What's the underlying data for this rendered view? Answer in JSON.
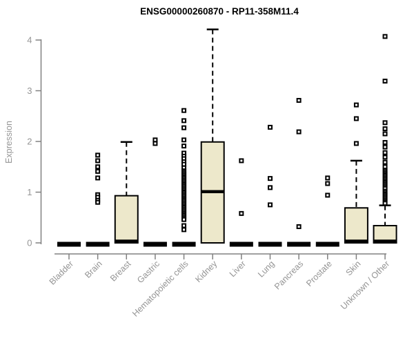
{
  "chart_data": {
    "type": "boxplot",
    "title": "ENSG00000260870 - RP11-358M11.4",
    "ylabel": "Expression",
    "xlabel": "",
    "ylim": [
      0,
      4.3
    ],
    "yticks": [
      0,
      1,
      2,
      3,
      4
    ],
    "grid": false,
    "legend": "none",
    "colors": {
      "box_fill": "#EDE8CB",
      "box_border": "#000000",
      "median": "#000000",
      "whisker": "#000000",
      "outlier": "#000000",
      "axis_line": "#808080",
      "tick_label": "#949494",
      "axis_label": "#949494",
      "title": "#000000",
      "background": "#FFFFFF"
    },
    "categories": [
      "Bladder",
      "Brain",
      "Breast",
      "Gastric",
      "Hematopoietic cells",
      "Kidney",
      "Liver",
      "Lung",
      "Pancreas",
      "Prostate",
      "Skin",
      "Unknown / Other"
    ],
    "boxes": [
      {
        "category": "Bladder",
        "min": 0,
        "q1": 0,
        "median": 0,
        "q3": 0,
        "max": 0,
        "outliers": []
      },
      {
        "category": "Brain",
        "min": 0,
        "q1": 0,
        "median": 0,
        "q3": 0,
        "max": 0,
        "outliers": [
          1.73,
          1.62,
          1.5,
          1.41,
          1.28,
          0.95,
          0.9,
          0.84,
          0.8
        ]
      },
      {
        "category": "Breast",
        "min": 0,
        "q1": 0,
        "median": 0,
        "q3": 0.93,
        "max": 1.99,
        "outliers": []
      },
      {
        "category": "Gastric",
        "min": 0,
        "q1": 0,
        "median": 0,
        "q3": 0,
        "max": 0,
        "outliers": [
          2.03,
          1.96
        ]
      },
      {
        "category": "Hematopoietic cells",
        "min": 0,
        "q1": 0,
        "median": 0,
        "q3": 0,
        "max": 0,
        "outliers": [
          2.61,
          2.41,
          2.27,
          2.03,
          1.91,
          1.77,
          1.71,
          1.66,
          1.6,
          1.55,
          1.48,
          1.42,
          1.39,
          1.36,
          1.33,
          1.3,
          1.27,
          1.24,
          1.21,
          1.18,
          1.15,
          1.12,
          1.09,
          1.06,
          1.03,
          1.0,
          0.97,
          0.94,
          0.91,
          0.88,
          0.85,
          0.82,
          0.79,
          0.76,
          0.73,
          0.7,
          0.67,
          0.64,
          0.61,
          0.58,
          0.55,
          0.52,
          0.49,
          0.46,
          0.34,
          0.26
        ]
      },
      {
        "category": "Kidney",
        "min": 0,
        "q1": 0,
        "median": 1.01,
        "q3": 1.99,
        "max": 4.21,
        "outliers": []
      },
      {
        "category": "Liver",
        "min": 0,
        "q1": 0,
        "median": 0,
        "q3": 0,
        "max": 0,
        "outliers": [
          1.62,
          0.58
        ]
      },
      {
        "category": "Lung",
        "min": 0,
        "q1": 0,
        "median": 0,
        "q3": 0,
        "max": 0,
        "outliers": [
          2.28,
          1.27,
          1.09,
          0.75
        ]
      },
      {
        "category": "Pancreas",
        "min": 0,
        "q1": 0,
        "median": 0,
        "q3": 0,
        "max": 0,
        "outliers": [
          2.81,
          2.19,
          0.32
        ]
      },
      {
        "category": "Prostate",
        "min": 0,
        "q1": 0,
        "median": 0,
        "q3": 0,
        "max": 0,
        "outliers": [
          1.28,
          1.17,
          0.94
        ]
      },
      {
        "category": "Skin",
        "min": 0,
        "q1": 0,
        "median": 0,
        "q3": 0.69,
        "max": 1.62,
        "outliers": [
          2.72,
          2.45,
          1.96
        ]
      },
      {
        "category": "Unknown / Other",
        "min": 0,
        "q1": 0,
        "median": 0,
        "q3": 0.34,
        "max": 0.74,
        "outliers": [
          4.07,
          3.19,
          2.37,
          2.25,
          2.15,
          1.98,
          1.89,
          1.78,
          1.69,
          1.59,
          1.5,
          1.43,
          1.4,
          1.37,
          1.34,
          1.31,
          1.28,
          1.25,
          1.22,
          1.19,
          1.16,
          1.13,
          1.1,
          1.07,
          1.02,
          0.99,
          0.96,
          0.93,
          0.9,
          0.87,
          0.84,
          0.81,
          0.78
        ]
      }
    ]
  }
}
